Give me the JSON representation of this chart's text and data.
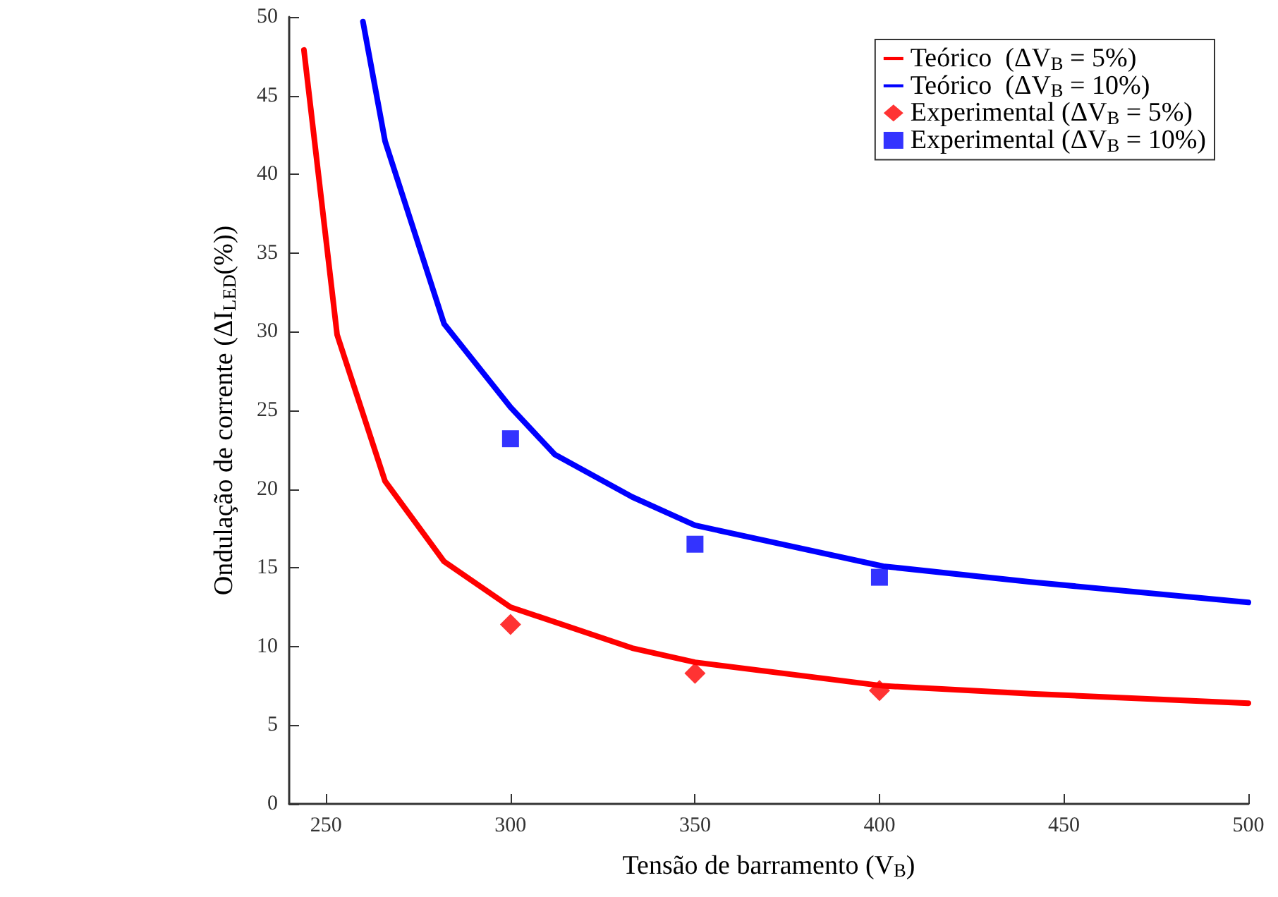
{
  "chart_data": {
    "type": "line",
    "xlabel": "Tensão de barramento (V$_{B}$)",
    "ylabel": "Ondulação de corrente (ΔI$_{LED}$(%))",
    "xlim": [
      240,
      500
    ],
    "xticks": [
      250,
      300,
      350,
      400,
      450,
      500
    ],
    "ylim": [
      0,
      50
    ],
    "yticks": [
      0,
      5,
      10,
      15,
      20,
      25,
      30,
      35,
      40,
      45,
      50
    ],
    "grid": false,
    "legend": "top right",
    "marker": "none",
    "line_style": "solid",
    "series": [
      {
        "name": "Teórico  (ΔV$_{B}$ = 5%)",
        "color": "#ff0000",
        "x": [
          244,
          253,
          266,
          282,
          300,
          333,
          350,
          401,
          441,
          500
        ],
        "values": [
          47.9,
          29.8,
          20.5,
          15.4,
          12.5,
          9.9,
          9.0,
          7.5,
          7.0,
          6.4
        ]
      },
      {
        "name": "Teórico  (ΔV$_{B}$ = 10%)",
        "color": "#0000ff",
        "x": [
          260,
          266,
          282,
          300,
          312,
          333,
          350,
          401,
          441,
          500
        ],
        "values": [
          49.7,
          42.1,
          30.5,
          25.2,
          22.2,
          19.5,
          17.7,
          15.1,
          14.1,
          12.8
        ]
      },
      {
        "name": "Experimental (ΔV$_{B}$ = 5%)",
        "type": "scatter",
        "marker": "diamond",
        "color": "#ff0000",
        "x": [
          300,
          350,
          400
        ],
        "values": [
          11.4,
          8.3,
          7.2
        ]
      },
      {
        "name": "Experimental (ΔV$_{B}$ = 10%)",
        "type": "scatter",
        "marker": "square",
        "color": "#0000ff",
        "x": [
          300,
          350,
          400
        ],
        "values": [
          23.2,
          16.5,
          14.4
        ]
      }
    ]
  }
}
